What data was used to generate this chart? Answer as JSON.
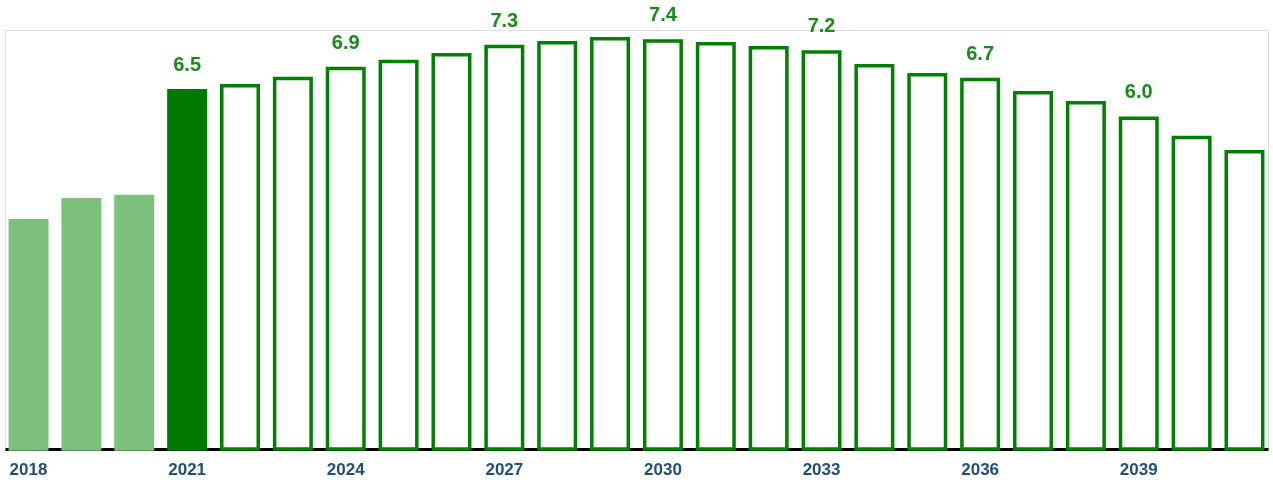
{
  "chart_data": {
    "type": "bar",
    "categories": [
      "2018",
      null,
      null,
      "2021",
      null,
      null,
      "2024",
      null,
      null,
      "2027",
      null,
      null,
      "2030",
      null,
      null,
      "2033",
      null,
      null,
      "2036",
      null,
      null,
      "2039",
      null,
      null
    ],
    "values": [
      4.14,
      4.52,
      4.58,
      6.5,
      6.59,
      6.72,
      6.9,
      7.03,
      7.15,
      7.3,
      7.37,
      7.44,
      7.4,
      7.35,
      7.28,
      7.2,
      6.95,
      6.79,
      6.7,
      6.46,
      6.28,
      6.0,
      5.65,
      5.39
    ],
    "value_labels": [
      null,
      null,
      null,
      "6.5",
      null,
      null,
      "6.9",
      null,
      null,
      "7.3",
      null,
      null,
      "7.4",
      null,
      null,
      "7.2",
      null,
      null,
      "6.7",
      null,
      null,
      "6.0",
      null,
      null
    ],
    "colors": [
      "#7cc07c",
      "#7cc07c",
      "#7cc07c",
      "#007a00",
      "#ffffff",
      "#ffffff",
      "#ffffff",
      "#ffffff",
      "#ffffff",
      "#ffffff",
      "#ffffff",
      "#ffffff",
      "#ffffff",
      "#ffffff",
      "#ffffff",
      "#ffffff",
      "#ffffff",
      "#ffffff",
      "#ffffff",
      "#ffffff",
      "#ffffff",
      "#ffffff",
      "#ffffff",
      "#ffffff"
    ],
    "ylim": [
      0,
      7.6
    ],
    "grid": false
  }
}
